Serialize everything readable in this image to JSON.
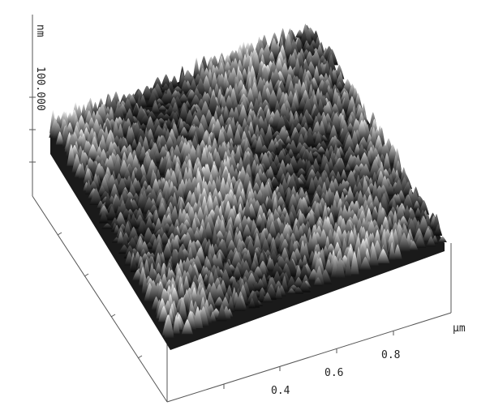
{
  "z_axis": {
    "label": "100.000",
    "unit": "nm"
  },
  "x_axis": {
    "unit": "μm",
    "ticks": [
      "0.4",
      "0.6",
      "0.8"
    ]
  }
}
